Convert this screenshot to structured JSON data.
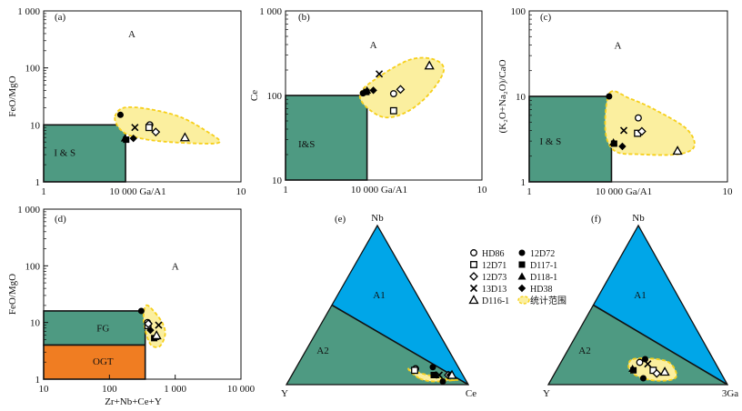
{
  "colors": {
    "field": "#4e9a82",
    "field_ogt": "#f07d22",
    "field_a1": "#00a6e8",
    "blob_fill": "#fbef9f",
    "blob_stroke": "#f6cf1a",
    "line": "#111111"
  },
  "legend": {
    "items": [
      {
        "label": "HD86",
        "symbol": "circle-open"
      },
      {
        "label": "12D72",
        "symbol": "circle-filled"
      },
      {
        "label": "12D71",
        "symbol": "square-open"
      },
      {
        "label": "D117-1",
        "symbol": "square-filled"
      },
      {
        "label": "12D73",
        "symbol": "diamond-open"
      },
      {
        "label": "D118-1",
        "symbol": "triangle-filled"
      },
      {
        "label": "13D13",
        "symbol": "cross"
      },
      {
        "label": "HD38",
        "symbol": "diamond-filled"
      },
      {
        "label": "D116-1",
        "symbol": "triangle-open"
      },
      {
        "label": "统计范围",
        "symbol": "blob"
      }
    ]
  },
  "chart_data": [
    {
      "panel": "(a)",
      "type": "scatter",
      "log_x": true,
      "log_y": true,
      "x_ticks": [
        "1",
        "10 000 Ga/A1",
        "10"
      ],
      "y_ticks": [
        "1 000",
        "100",
        "10",
        "1"
      ],
      "ylabel": "FeO/MgO",
      "xlabel": "",
      "xlim": [
        1,
        10
      ],
      "ylim": [
        1,
        1000
      ],
      "fields": [
        {
          "label": "I & S",
          "polygon": [
            [
              1,
              1
            ],
            [
              1,
              10
            ],
            [
              2.6,
              10
            ],
            [
              2.6,
              1
            ]
          ]
        }
      ],
      "field_labels": [
        {
          "text": "A",
          "at": [
            2.8,
            400
          ]
        },
        {
          "text": "I & S",
          "at": [
            1.28,
            3.3
          ]
        }
      ],
      "envelope": [
        [
          2.3,
          14
        ],
        [
          2.55,
          20
        ],
        [
          3.4,
          19
        ],
        [
          5,
          13.5
        ],
        [
          7,
          7
        ],
        [
          7.8,
          5
        ],
        [
          6.4,
          4.7
        ],
        [
          3.8,
          5.2
        ],
        [
          2.75,
          6.5
        ],
        [
          2.4,
          9
        ]
      ],
      "points": [
        {
          "sample": "12D72",
          "symbol": "circle-filled",
          "x": 2.45,
          "y": 15
        },
        {
          "sample": "D117-1",
          "symbol": "square-filled",
          "x": 2.62,
          "y": 5.5
        },
        {
          "sample": "D118-1",
          "symbol": "triangle-filled",
          "x": 2.58,
          "y": 5.8
        },
        {
          "sample": "HD38",
          "symbol": "diamond-filled",
          "x": 2.85,
          "y": 5.8
        },
        {
          "sample": "13D13",
          "symbol": "cross",
          "x": 2.9,
          "y": 9
        },
        {
          "sample": "HD86",
          "symbol": "circle-open",
          "x": 3.45,
          "y": 10
        },
        {
          "sample": "12D71",
          "symbol": "square-open",
          "x": 3.42,
          "y": 9
        },
        {
          "sample": "12D73",
          "symbol": "diamond-open",
          "x": 3.7,
          "y": 7.5
        },
        {
          "sample": "D116-1",
          "symbol": "triangle-open",
          "x": 5.2,
          "y": 6
        }
      ]
    },
    {
      "panel": "(b)",
      "type": "scatter",
      "log_x": true,
      "log_y": true,
      "x_ticks": [
        "1",
        "10 000 Ga/A1",
        "10"
      ],
      "y_ticks": [
        "1 000",
        "100",
        "10"
      ],
      "ylabel": "Ce",
      "xlabel": "",
      "xlim": [
        1,
        10
      ],
      "ylim": [
        10,
        1000
      ],
      "fields": [
        {
          "label": "I&S",
          "polygon": [
            [
              1,
              10
            ],
            [
              1,
              100
            ],
            [
              2.6,
              100
            ],
            [
              2.6,
              10
            ]
          ]
        }
      ],
      "field_labels": [
        {
          "text": "A",
          "at": [
            2.8,
            400
          ]
        },
        {
          "text": "I&S",
          "at": [
            1.28,
            27
          ]
        }
      ],
      "envelope": [
        [
          2.4,
          105
        ],
        [
          2.8,
          150
        ],
        [
          4.2,
          260
        ],
        [
          5.6,
          270
        ],
        [
          6.4,
          200
        ],
        [
          5.4,
          105
        ],
        [
          4.2,
          65
        ],
        [
          3.2,
          55
        ],
        [
          2.55,
          75
        ]
      ],
      "points": [
        {
          "sample": "12D72",
          "symbol": "circle-filled",
          "x": 2.48,
          "y": 106
        },
        {
          "sample": "D117-1",
          "symbol": "square-filled",
          "x": 2.58,
          "y": 110
        },
        {
          "sample": "D118-1",
          "symbol": "triangle-filled",
          "x": 2.6,
          "y": 115
        },
        {
          "sample": "HD38",
          "symbol": "diamond-filled",
          "x": 2.8,
          "y": 115
        },
        {
          "sample": "13D13",
          "symbol": "cross",
          "x": 3.0,
          "y": 180
        },
        {
          "sample": "HD86",
          "symbol": "circle-open",
          "x": 3.55,
          "y": 105
        },
        {
          "sample": "12D71",
          "symbol": "square-open",
          "x": 3.55,
          "y": 66
        },
        {
          "sample": "12D73",
          "symbol": "diamond-open",
          "x": 3.85,
          "y": 118
        },
        {
          "sample": "D116-1",
          "symbol": "triangle-open",
          "x": 5.4,
          "y": 225
        }
      ]
    },
    {
      "panel": "(c)",
      "type": "scatter",
      "log_x": true,
      "log_y": true,
      "x_ticks": [
        "1",
        "10 000 Ga/A1",
        "10"
      ],
      "y_ticks": [
        "100",
        "10",
        "1"
      ],
      "ylabel": "(K₂O+Na₂O)/CaO",
      "xlabel": "",
      "xlim": [
        1,
        10
      ],
      "ylim": [
        1,
        100
      ],
      "fields": [
        {
          "label": "I & S",
          "polygon": [
            [
              1,
              1
            ],
            [
              1,
              10
            ],
            [
              2.6,
              10
            ],
            [
              2.6,
              1
            ]
          ]
        }
      ],
      "field_labels": [
        {
          "text": "A",
          "at": [
            2.8,
            40
          ]
        },
        {
          "text": "I & S",
          "at": [
            1.28,
            3
          ]
        }
      ],
      "envelope": [
        [
          2.55,
          11
        ],
        [
          3.2,
          9.5
        ],
        [
          4.3,
          7
        ],
        [
          6.2,
          4.2
        ],
        [
          6.8,
          2.6
        ],
        [
          5.6,
          2.1
        ],
        [
          3.6,
          2.1
        ],
        [
          2.7,
          2.3
        ],
        [
          2.42,
          4
        ]
      ],
      "points": [
        {
          "sample": "12D72",
          "symbol": "circle-filled",
          "x": 2.53,
          "y": 10
        },
        {
          "sample": "D117-1",
          "symbol": "square-filled",
          "x": 2.68,
          "y": 2.8
        },
        {
          "sample": "D118-1",
          "symbol": "triangle-filled",
          "x": 2.66,
          "y": 2.9
        },
        {
          "sample": "HD38",
          "symbol": "diamond-filled",
          "x": 2.95,
          "y": 2.6
        },
        {
          "sample": "13D13",
          "symbol": "cross",
          "x": 3.0,
          "y": 4
        },
        {
          "sample": "HD86",
          "symbol": "circle-open",
          "x": 3.55,
          "y": 5.6
        },
        {
          "sample": "12D71",
          "symbol": "square-open",
          "x": 3.52,
          "y": 3.7
        },
        {
          "sample": "12D73",
          "symbol": "diamond-open",
          "x": 3.7,
          "y": 3.9
        },
        {
          "sample": "D116-1",
          "symbol": "triangle-open",
          "x": 5.6,
          "y": 2.3
        }
      ]
    },
    {
      "panel": "(d)",
      "type": "scatter",
      "log_x": true,
      "log_y": true,
      "x_ticks": [
        "10",
        "100",
        "1 000",
        "10 000"
      ],
      "y_ticks": [
        "1 000",
        "100",
        "10",
        "1"
      ],
      "ylabel": "FeO/MgO",
      "xlabel": "Zr+Nb+Ce+Y",
      "xlim": [
        10,
        10000
      ],
      "ylim": [
        1,
        1000
      ],
      "fields": [
        {
          "label": "FG",
          "polygon": [
            [
              10,
              4
            ],
            [
              10,
              16
            ],
            [
              350,
              16
            ],
            [
              350,
              4
            ]
          ]
        },
        {
          "label": "OGT",
          "polygon": [
            [
              10,
              1
            ],
            [
              10,
              4
            ],
            [
              350,
              1
            ],
            [
              350,
              4
            ]
          ]
        }
      ],
      "field_labels": [
        {
          "text": "A",
          "at": [
            1000,
            100
          ]
        },
        {
          "text": "FG",
          "at": [
            80,
            8
          ]
        },
        {
          "text": "OGT",
          "at": [
            80,
            2.1
          ]
        }
      ],
      "envelope": [
        [
          360,
          20
        ],
        [
          470,
          16
        ],
        [
          650,
          9.5
        ],
        [
          700,
          6
        ],
        [
          580,
          3.8
        ],
        [
          430,
          4
        ],
        [
          360,
          6.5
        ],
        [
          330,
          12
        ]
      ],
      "points": [
        {
          "sample": "12D72",
          "symbol": "circle-filled",
          "x": 305,
          "y": 16
        },
        {
          "sample": "HD86",
          "symbol": "circle-open",
          "x": 380,
          "y": 10
        },
        {
          "sample": "12D71",
          "symbol": "square-open",
          "x": 385,
          "y": 8.8
        },
        {
          "sample": "12D73",
          "symbol": "diamond-open",
          "x": 390,
          "y": 9.5
        },
        {
          "sample": "13D13",
          "symbol": "cross",
          "x": 560,
          "y": 9
        },
        {
          "sample": "HD38",
          "symbol": "diamond-filled",
          "x": 420,
          "y": 7.3
        },
        {
          "sample": "D117-1",
          "symbol": "square-filled",
          "x": 480,
          "y": 5.3
        },
        {
          "sample": "D118-1",
          "symbol": "triangle-filled",
          "x": 500,
          "y": 5.6
        },
        {
          "sample": "D116-1",
          "symbol": "triangle-open",
          "x": 520,
          "y": 5.9
        }
      ]
    },
    {
      "panel": "(e)",
      "type": "ternary",
      "vertices": {
        "top": "Nb",
        "left": "Y",
        "right": "Ce"
      },
      "fields": [
        {
          "label": "A1"
        },
        {
          "label": "A2"
        }
      ],
      "divider": {
        "from_left_edge": 0.5,
        "to": "right"
      },
      "envelope": [
        [
          0.04,
          0.25,
          0.71
        ],
        [
          0.1,
          0.28,
          0.62
        ],
        [
          0.07,
          0.22,
          0.71
        ],
        [
          0.03,
          0.08,
          0.89
        ],
        [
          0.03,
          0.05,
          0.92
        ],
        [
          0.02,
          0.18,
          0.8
        ]
      ],
      "points": [
        {
          "sample": "HD86",
          "symbol": "circle-open",
          "nb": 0.1,
          "y": 0.24,
          "ce": 0.66
        },
        {
          "sample": "12D71",
          "symbol": "square-open",
          "nb": 0.09,
          "y": 0.25,
          "ce": 0.66
        },
        {
          "sample": "12D72",
          "symbol": "circle-filled",
          "nb": 0.11,
          "y": 0.14,
          "ce": 0.75
        },
        {
          "sample": "D117-1",
          "symbol": "square-filled",
          "nb": 0.06,
          "y": 0.16,
          "ce": 0.78
        },
        {
          "sample": "D118-1",
          "symbol": "triangle-filled",
          "nb": 0.06,
          "y": 0.15,
          "ce": 0.79
        },
        {
          "sample": "13D13",
          "symbol": "cross",
          "nb": 0.06,
          "y": 0.13,
          "ce": 0.81
        },
        {
          "sample": "12D73",
          "symbol": "diamond-open",
          "nb": 0.06,
          "y": 0.08,
          "ce": 0.86
        },
        {
          "sample": "HD38",
          "symbol": "diamond-filled",
          "nb": 0.06,
          "y": 0.07,
          "ce": 0.87
        },
        {
          "sample": "D116-1",
          "symbol": "triangle-open",
          "nb": 0.06,
          "y": 0.06,
          "ce": 0.88
        },
        {
          "sample": "12D72",
          "symbol": "circle-filled",
          "nb": 0.02,
          "y": 0.13,
          "ce": 0.85
        }
      ]
    },
    {
      "panel": "(f)",
      "type": "ternary",
      "vertices": {
        "top": "Nb",
        "left": "Y",
        "right": "3Ga"
      },
      "fields": [
        {
          "label": "A1"
        },
        {
          "label": "A2"
        }
      ],
      "divider": {
        "from_left_edge": 0.5,
        "to": "right"
      },
      "envelope": [
        [
          0.16,
          0.45,
          0.39
        ],
        [
          0.15,
          0.27,
          0.58
        ],
        [
          0.07,
          0.25,
          0.68
        ],
        [
          0.03,
          0.3,
          0.67
        ],
        [
          0.03,
          0.42,
          0.55
        ],
        [
          0.08,
          0.5,
          0.42
        ]
      ],
      "points": [
        {
          "sample": "HD86",
          "symbol": "circle-open",
          "nb": 0.14,
          "y": 0.42,
          "ce": 0.44
        },
        {
          "sample": "12D72",
          "symbol": "circle-filled",
          "nb": 0.16,
          "y": 0.38,
          "ce": 0.46
        },
        {
          "sample": "13D13",
          "symbol": "cross",
          "nb": 0.13,
          "y": 0.38,
          "ce": 0.49
        },
        {
          "sample": "D118-1",
          "symbol": "triangle-filled",
          "nb": 0.1,
          "y": 0.48,
          "ce": 0.42
        },
        {
          "sample": "D117-1",
          "symbol": "square-filled",
          "nb": 0.09,
          "y": 0.48,
          "ce": 0.43
        },
        {
          "sample": "12D71",
          "symbol": "square-open",
          "nb": 0.09,
          "y": 0.37,
          "ce": 0.54
        },
        {
          "sample": "12D73",
          "symbol": "diamond-open",
          "nb": 0.07,
          "y": 0.36,
          "ce": 0.57
        },
        {
          "sample": "D116-1",
          "symbol": "triangle-open",
          "nb": 0.08,
          "y": 0.31,
          "ce": 0.61
        },
        {
          "sample": "12D72",
          "symbol": "circle-filled",
          "nb": 0.04,
          "y": 0.45,
          "ce": 0.51
        }
      ]
    }
  ]
}
